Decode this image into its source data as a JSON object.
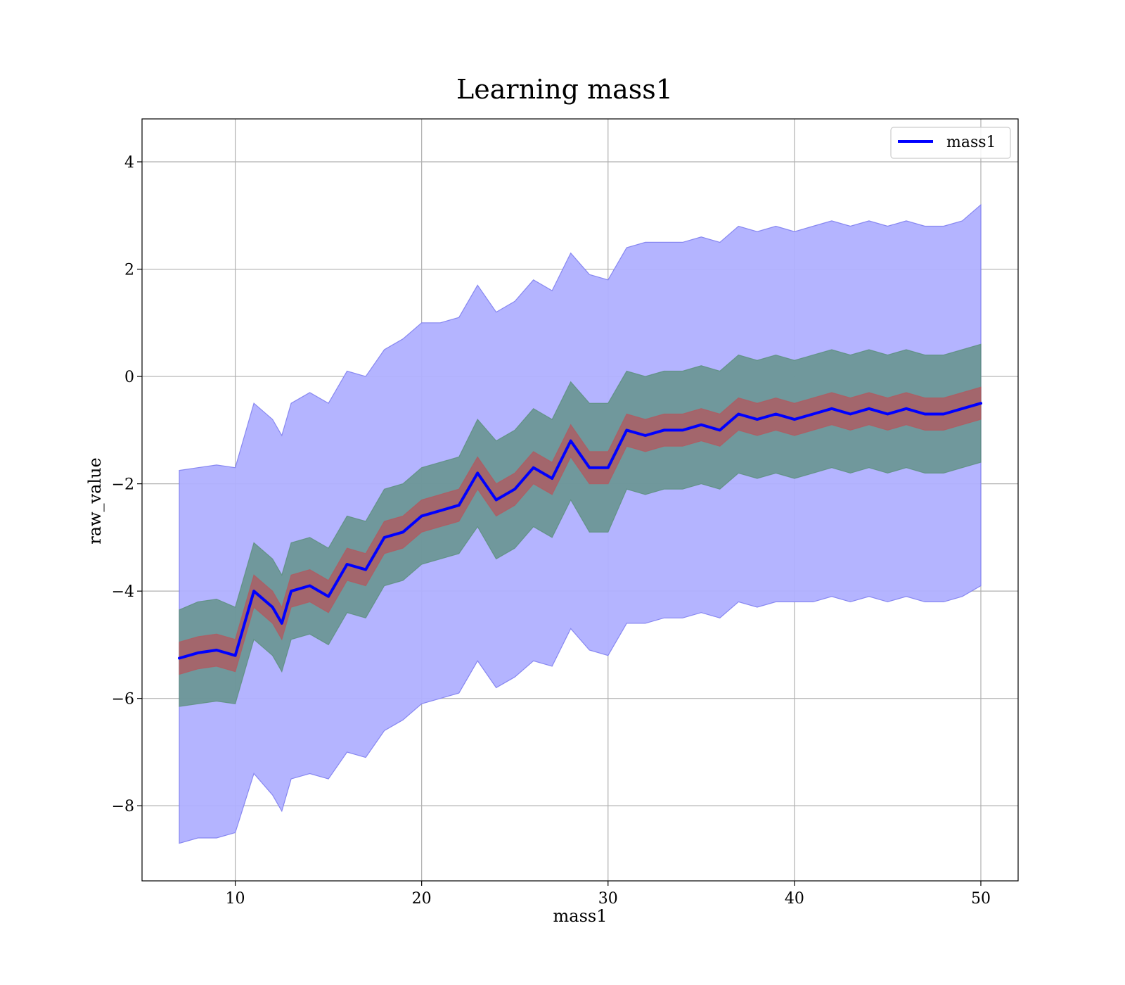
{
  "chart_data": {
    "type": "area",
    "title": "Learning mass1",
    "xlabel": "mass1",
    "ylabel": "raw_value",
    "xlim": [
      5,
      52
    ],
    "ylim": [
      -9.4,
      4.8
    ],
    "x_ticks": [
      10,
      20,
      30,
      40,
      50
    ],
    "x_tick_labels": [
      "10",
      "20",
      "30",
      "40",
      "50"
    ],
    "y_ticks": [
      4,
      2,
      0,
      -2,
      -4,
      -6,
      -8
    ],
    "y_tick_labels": [
      "4",
      "2",
      "0",
      "−2",
      "−4",
      "−6",
      "−8"
    ],
    "grid": true,
    "legend": {
      "placement": "top-right",
      "entries": [
        "mass1"
      ]
    },
    "colors": {
      "mean_line": "#0000ff",
      "outer_band": "#b0b0ff",
      "outer_band_edge": "#8080f0",
      "mid_band": "#5a8f7b",
      "inner_band": "#b05a60"
    },
    "x": [
      7,
      8,
      9,
      10,
      11,
      12,
      12.5,
      13,
      14,
      15,
      16,
      17,
      18,
      19,
      20,
      21,
      22,
      23,
      24,
      25,
      26,
      27,
      28,
      29,
      30,
      31,
      32,
      33,
      34,
      35,
      36,
      37,
      38,
      39,
      40,
      41,
      42,
      43,
      44,
      45,
      46,
      47,
      48,
      49,
      50
    ],
    "series": [
      {
        "name": "mass1",
        "values": [
          -5.25,
          -5.15,
          -5.1,
          -5.2,
          -4.0,
          -4.3,
          -4.6,
          -4.0,
          -3.9,
          -4.1,
          -3.5,
          -3.6,
          -3.0,
          -2.9,
          -2.6,
          -2.5,
          -2.4,
          -1.8,
          -2.3,
          -2.1,
          -1.7,
          -1.9,
          -1.2,
          -1.7,
          -1.7,
          -1.0,
          -1.1,
          -1.0,
          -1.0,
          -0.9,
          -1.0,
          -0.7,
          -0.8,
          -0.7,
          -0.8,
          -0.7,
          -0.6,
          -0.7,
          -0.6,
          -0.7,
          -0.6,
          -0.7,
          -0.7,
          -0.6,
          -0.5
        ]
      }
    ],
    "bands": [
      {
        "level": "outer",
        "lower": [
          -8.7,
          -8.6,
          -8.6,
          -8.5,
          -7.4,
          -7.8,
          -8.1,
          -7.5,
          -7.4,
          -7.5,
          -7.0,
          -7.1,
          -6.6,
          -6.4,
          -6.1,
          -6.0,
          -5.9,
          -5.3,
          -5.8,
          -5.6,
          -5.3,
          -5.4,
          -4.7,
          -5.1,
          -5.2,
          -4.6,
          -4.6,
          -4.5,
          -4.5,
          -4.4,
          -4.5,
          -4.2,
          -4.3,
          -4.2,
          -4.2,
          -4.2,
          -4.1,
          -4.2,
          -4.1,
          -4.2,
          -4.1,
          -4.2,
          -4.2,
          -4.1,
          -3.9
        ],
        "upper": [
          -1.75,
          -1.7,
          -1.65,
          -1.7,
          -0.5,
          -0.8,
          -1.1,
          -0.5,
          -0.3,
          -0.5,
          0.1,
          0.0,
          0.5,
          0.7,
          1.0,
          1.0,
          1.1,
          1.7,
          1.2,
          1.4,
          1.8,
          1.6,
          2.3,
          1.9,
          1.8,
          2.4,
          2.5,
          2.5,
          2.5,
          2.6,
          2.5,
          2.8,
          2.7,
          2.8,
          2.7,
          2.8,
          2.9,
          2.8,
          2.9,
          2.8,
          2.9,
          2.8,
          2.8,
          2.9,
          3.2
        ]
      },
      {
        "level": "middle",
        "lower": [
          -6.15,
          -6.1,
          -6.05,
          -6.1,
          -4.9,
          -5.2,
          -5.5,
          -4.9,
          -4.8,
          -5.0,
          -4.4,
          -4.5,
          -3.9,
          -3.8,
          -3.5,
          -3.4,
          -3.3,
          -2.8,
          -3.4,
          -3.2,
          -2.8,
          -3.0,
          -2.3,
          -2.9,
          -2.9,
          -2.1,
          -2.2,
          -2.1,
          -2.1,
          -2.0,
          -2.1,
          -1.8,
          -1.9,
          -1.8,
          -1.9,
          -1.8,
          -1.7,
          -1.8,
          -1.7,
          -1.8,
          -1.7,
          -1.8,
          -1.8,
          -1.7,
          -1.6
        ],
        "upper": [
          -4.35,
          -4.2,
          -4.15,
          -4.3,
          -3.1,
          -3.4,
          -3.7,
          -3.1,
          -3.0,
          -3.2,
          -2.6,
          -2.7,
          -2.1,
          -2.0,
          -1.7,
          -1.6,
          -1.5,
          -0.8,
          -1.2,
          -1.0,
          -0.6,
          -0.8,
          -0.1,
          -0.5,
          -0.5,
          0.1,
          0.0,
          0.1,
          0.1,
          0.2,
          0.1,
          0.4,
          0.3,
          0.4,
          0.3,
          0.4,
          0.5,
          0.4,
          0.5,
          0.4,
          0.5,
          0.4,
          0.4,
          0.5,
          0.6
        ]
      },
      {
        "level": "inner",
        "lower": [
          -5.55,
          -5.45,
          -5.4,
          -5.5,
          -4.3,
          -4.6,
          -4.9,
          -4.3,
          -4.2,
          -4.4,
          -3.8,
          -3.9,
          -3.3,
          -3.2,
          -2.9,
          -2.8,
          -2.7,
          -2.1,
          -2.6,
          -2.4,
          -2.0,
          -2.2,
          -1.5,
          -2.0,
          -2.0,
          -1.3,
          -1.4,
          -1.3,
          -1.3,
          -1.2,
          -1.3,
          -1.0,
          -1.1,
          -1.0,
          -1.1,
          -1.0,
          -0.9,
          -1.0,
          -0.9,
          -1.0,
          -0.9,
          -1.0,
          -1.0,
          -0.9,
          -0.8
        ],
        "upper": [
          -4.95,
          -4.85,
          -4.8,
          -4.9,
          -3.7,
          -4.0,
          -4.3,
          -3.7,
          -3.6,
          -3.8,
          -3.2,
          -3.3,
          -2.7,
          -2.6,
          -2.3,
          -2.2,
          -2.1,
          -1.5,
          -2.0,
          -1.8,
          -1.4,
          -1.6,
          -0.9,
          -1.4,
          -1.4,
          -0.7,
          -0.8,
          -0.7,
          -0.7,
          -0.6,
          -0.7,
          -0.4,
          -0.5,
          -0.4,
          -0.5,
          -0.4,
          -0.3,
          -0.4,
          -0.3,
          -0.4,
          -0.3,
          -0.4,
          -0.4,
          -0.3,
          -0.2
        ]
      }
    ]
  }
}
